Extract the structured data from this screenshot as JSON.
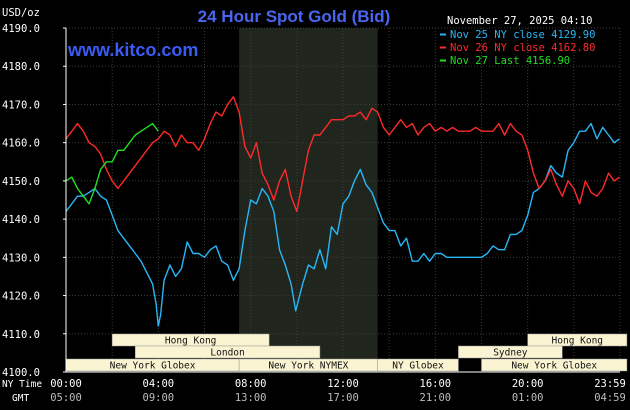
{
  "chart_data": {
    "type": "line",
    "title": "24 Hour Spot Gold (Bid)",
    "watermark": "www.kitco.com",
    "unit_label": "USD/oz",
    "date_label": "November 27, 2025 04:10",
    "y_ticks": [
      "4190.0",
      "4180.0",
      "4170.0",
      "4160.0",
      "4150.0",
      "4140.0",
      "4130.0",
      "4120.0",
      "4110.0",
      "4100.0"
    ],
    "ylim": [
      4100,
      4190
    ],
    "xlim": [
      0,
      24
    ],
    "x_ticks_ny": [
      "00:00",
      "04:00",
      "08:00",
      "12:00",
      "16:00",
      "20:00",
      "23:59"
    ],
    "x_ticks_gmt": [
      "05:00",
      "09:00",
      "13:00",
      "17:00",
      "21:00",
      "01:00",
      "04:59"
    ],
    "x_ticks_pos": [
      0,
      4,
      8,
      12,
      16,
      20,
      23.98
    ],
    "row_label_ny": "NY Time",
    "row_label_gmt": "GMT",
    "highlight_band": [
      7.5,
      13.5
    ],
    "colors": {
      "background": "#000000",
      "plot_bg": "#000000",
      "band": "#20261e",
      "grid": "#3c3c3c",
      "axis": "#ffffff",
      "text": "#ffffff",
      "title": "#4a66f0",
      "watermark": "#3a5cf5",
      "label_fill": "#fbf4d2",
      "label_text": "#111111"
    },
    "legend": [
      {
        "label": "Nov 25 NY close 4129.90",
        "color": "#29b6f6"
      },
      {
        "label": "Nov 26 NY close 4162.80",
        "color": "#ff2a2a"
      },
      {
        "label": "Nov 27 Last 4156.90",
        "color": "#22dd22"
      }
    ],
    "sessions": [
      {
        "label": "Hong Kong",
        "start": 2.0,
        "end": 8.8,
        "row": 0
      },
      {
        "label": "Hong Kong",
        "start": 20.0,
        "end": 24.3,
        "row": 0
      },
      {
        "label": "London",
        "start": 3.0,
        "end": 11.0,
        "row": 1
      },
      {
        "label": "Sydney",
        "start": 17.0,
        "end": 21.5,
        "row": 1
      },
      {
        "label": "New York Globex",
        "start": 0.0,
        "end": 7.5,
        "row": 2
      },
      {
        "label": "New York NYMEX",
        "start": 7.5,
        "end": 13.5,
        "row": 2
      },
      {
        "label": "NY Globex",
        "start": 13.5,
        "end": 17.0,
        "row": 2
      },
      {
        "label": "New York Globex",
        "start": 18.0,
        "end": 24.3,
        "row": 2
      }
    ],
    "series": [
      {
        "name": "Nov 25 NY close 4129.90",
        "color": "#29b6f6",
        "x": [
          0.0,
          0.25,
          0.5,
          0.75,
          1.0,
          1.25,
          1.5,
          1.75,
          2.0,
          2.25,
          2.5,
          2.75,
          3.0,
          3.25,
          3.5,
          3.75,
          3.9,
          4.0,
          4.1,
          4.25,
          4.5,
          4.75,
          5.0,
          5.25,
          5.5,
          5.75,
          6.0,
          6.25,
          6.5,
          6.75,
          7.0,
          7.25,
          7.5,
          7.75,
          8.0,
          8.25,
          8.5,
          8.75,
          9.0,
          9.25,
          9.5,
          9.75,
          9.95,
          10.25,
          10.5,
          10.75,
          11.0,
          11.25,
          11.5,
          11.75,
          12.0,
          12.25,
          12.5,
          12.75,
          13.0,
          13.25,
          13.5,
          13.75,
          14.0,
          14.25,
          14.5,
          14.75,
          15.0,
          15.25,
          15.5,
          15.75,
          16.0,
          16.25,
          16.5,
          16.75,
          17.0,
          17.25,
          17.5,
          17.75,
          18.0,
          18.25,
          18.5,
          18.75,
          19.0,
          19.25,
          19.5,
          19.75,
          20.0,
          20.25,
          20.5,
          20.75,
          21.0,
          21.25,
          21.5,
          21.75,
          22.0,
          22.25,
          22.5,
          22.75,
          23.0,
          23.25,
          23.5,
          23.75,
          23.98
        ],
        "y": [
          4142,
          4144,
          4146,
          4146,
          4147,
          4148,
          4146,
          4145,
          4141,
          4137,
          4135,
          4133,
          4131,
          4129,
          4126,
          4123,
          4118,
          4112,
          4115,
          4124,
          4128,
          4125,
          4127,
          4134,
          4131,
          4131,
          4130,
          4132,
          4133,
          4129,
          4128,
          4124,
          4127,
          4137,
          4145,
          4144,
          4148,
          4146,
          4142,
          4132,
          4128,
          4123,
          4116,
          4123,
          4128,
          4127,
          4132,
          4127,
          4138,
          4136,
          4144,
          4146,
          4150,
          4153,
          4149,
          4147,
          4143,
          4139,
          4137,
          4137,
          4133,
          4135,
          4129,
          4129,
          4131,
          4129,
          4131,
          4131,
          4130,
          4130,
          4130,
          4130,
          4130,
          4130,
          4130,
          4131,
          4133,
          4132,
          4132,
          4136,
          4136,
          4137,
          4141,
          4147,
          4148,
          4150,
          4154,
          4152,
          4151,
          4158,
          4160,
          4163,
          4163,
          4165,
          4161,
          4164,
          4162,
          4160,
          4161
        ]
      },
      {
        "name": "Nov 26 NY close 4162.80",
        "color": "#ff2a2a",
        "x": [
          0.0,
          0.25,
          0.5,
          0.75,
          1.0,
          1.25,
          1.5,
          1.75,
          2.0,
          2.25,
          2.5,
          2.75,
          3.0,
          3.25,
          3.5,
          3.75,
          4.0,
          4.25,
          4.5,
          4.75,
          5.0,
          5.25,
          5.5,
          5.75,
          6.0,
          6.25,
          6.5,
          6.75,
          7.0,
          7.25,
          7.5,
          7.75,
          8.0,
          8.25,
          8.5,
          8.75,
          9.0,
          9.25,
          9.5,
          9.75,
          10.0,
          10.25,
          10.5,
          10.75,
          11.0,
          11.25,
          11.5,
          11.75,
          12.0,
          12.25,
          12.5,
          12.75,
          13.0,
          13.25,
          13.5,
          13.75,
          14.0,
          14.25,
          14.5,
          14.75,
          15.0,
          15.25,
          15.5,
          15.75,
          16.0,
          16.25,
          16.5,
          16.75,
          17.0,
          17.25,
          17.5,
          17.75,
          18.0,
          18.25,
          18.5,
          18.75,
          19.0,
          19.25,
          19.5,
          19.75,
          20.0,
          20.25,
          20.5,
          20.75,
          21.0,
          21.25,
          21.5,
          21.75,
          22.0,
          22.25,
          22.5,
          22.75,
          23.0,
          23.25,
          23.5,
          23.75,
          23.98
        ],
        "y": [
          4161,
          4163,
          4165,
          4163,
          4160,
          4159,
          4157,
          4153,
          4150,
          4148,
          4150,
          4152,
          4154,
          4156,
          4158,
          4160,
          4161,
          4163,
          4162,
          4159,
          4162,
          4160,
          4160,
          4158,
          4161,
          4165,
          4168,
          4167,
          4170,
          4172,
          4168,
          4159,
          4156,
          4160,
          4152,
          4149,
          4145,
          4150,
          4153,
          4146,
          4142,
          4150,
          4158,
          4162,
          4162,
          4164,
          4166,
          4166,
          4166,
          4167,
          4167,
          4168,
          4166,
          4169,
          4168,
          4164,
          4162,
          4164,
          4166,
          4164,
          4165,
          4162,
          4164,
          4165,
          4163,
          4164,
          4163,
          4164,
          4163,
          4163,
          4163,
          4164,
          4163,
          4163,
          4163,
          4165,
          4162,
          4165,
          4163,
          4162,
          4158,
          4152,
          4148,
          4150,
          4153,
          4149,
          4146,
          4150,
          4148,
          4144,
          4150,
          4147,
          4146,
          4148,
          4152,
          4150,
          4151
        ]
      },
      {
        "name": "Nov 27 Last 4156.90",
        "color": "#22dd22",
        "x": [
          0.0,
          0.25,
          0.5,
          0.75,
          1.0,
          1.25,
          1.5,
          1.75,
          2.0,
          2.25,
          2.5,
          2.75,
          3.0,
          3.25,
          3.5,
          3.75,
          4.0
        ],
        "y": [
          4150,
          4151,
          4148,
          4146,
          4144,
          4148,
          4153,
          4155,
          4155,
          4158,
          4158,
          4160,
          4162,
          4163,
          4164,
          4165,
          4163
        ]
      }
    ]
  }
}
